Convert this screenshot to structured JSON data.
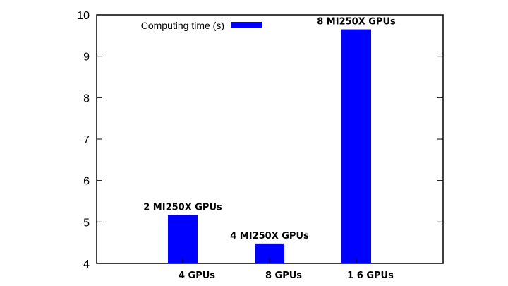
{
  "chart_data": {
    "type": "bar",
    "title": "",
    "xlabel": "",
    "ylabel": "",
    "categories": [
      "4 GPUs",
      "8 GPUs",
      "1 6 GPUs"
    ],
    "series": [
      {
        "name": "Computing time (s)",
        "values": [
          5.17,
          4.48,
          9.65
        ],
        "color": "#0000ff"
      }
    ],
    "bar_labels": [
      "2 MI250X GPUs",
      "4 MI250X GPUs",
      "8 MI250X GPUs"
    ],
    "ylim": [
      4,
      10
    ],
    "yticks": [
      4,
      5,
      6,
      7,
      8,
      9,
      10
    ],
    "grid": false,
    "legend_position": "top-left"
  }
}
